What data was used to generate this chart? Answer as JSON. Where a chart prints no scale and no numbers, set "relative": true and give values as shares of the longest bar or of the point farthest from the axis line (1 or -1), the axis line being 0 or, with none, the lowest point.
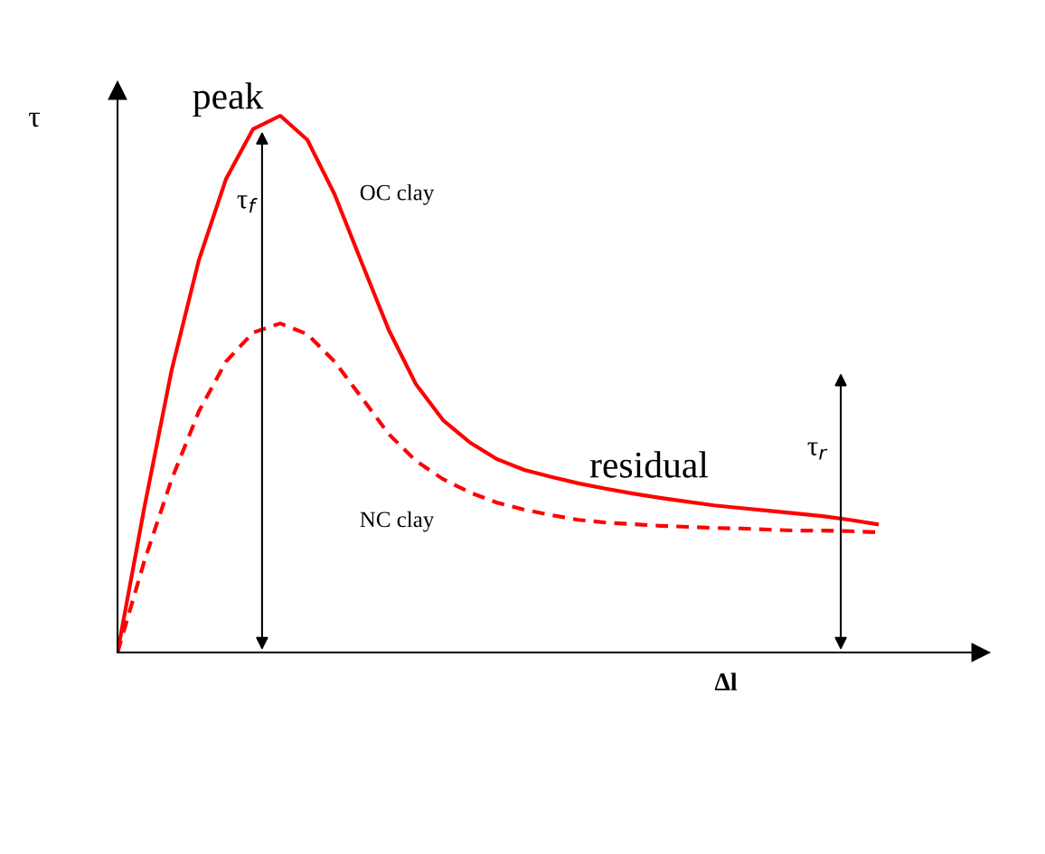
{
  "chart_data": {
    "type": "line",
    "relative": true,
    "xlabel": "Δl",
    "ylabel": "τ",
    "categories": [
      null,
      null,
      null,
      null,
      null,
      null,
      null,
      null,
      null,
      null,
      null,
      null,
      null,
      null,
      null,
      null,
      null,
      null,
      null,
      null,
      null,
      null,
      null,
      null,
      null,
      null,
      null,
      null,
      null
    ],
    "series": [
      {
        "name": "OC clay",
        "color": "#ff0000",
        "line_style": "solid",
        "values": [
          0,
          0.273,
          0.527,
          0.731,
          0.882,
          0.975,
          1.0,
          0.955,
          0.854,
          0.727,
          0.601,
          0.5,
          0.433,
          0.391,
          0.36,
          0.34,
          0.327,
          0.315,
          0.305,
          0.296,
          0.288,
          0.281,
          0.274,
          0.269,
          0.264,
          0.259,
          0.254,
          0.247,
          0.239
        ]
      },
      {
        "name": "NC clay",
        "color": "#ff0000",
        "line_style": "dashed",
        "values": [
          0,
          0.172,
          0.323,
          0.449,
          0.542,
          0.596,
          0.613,
          0.593,
          0.542,
          0.475,
          0.407,
          0.357,
          0.323,
          0.298,
          0.279,
          0.266,
          0.256,
          0.247,
          0.242,
          0.239,
          0.236,
          0.234,
          0.232,
          0.231,
          0.229,
          0.227,
          0.227,
          0.226,
          0.224
        ]
      }
    ],
    "annotations": [
      "peak",
      "residual",
      "τ$_{f}$",
      "τ$_{r}$"
    ],
    "legend": false
  }
}
